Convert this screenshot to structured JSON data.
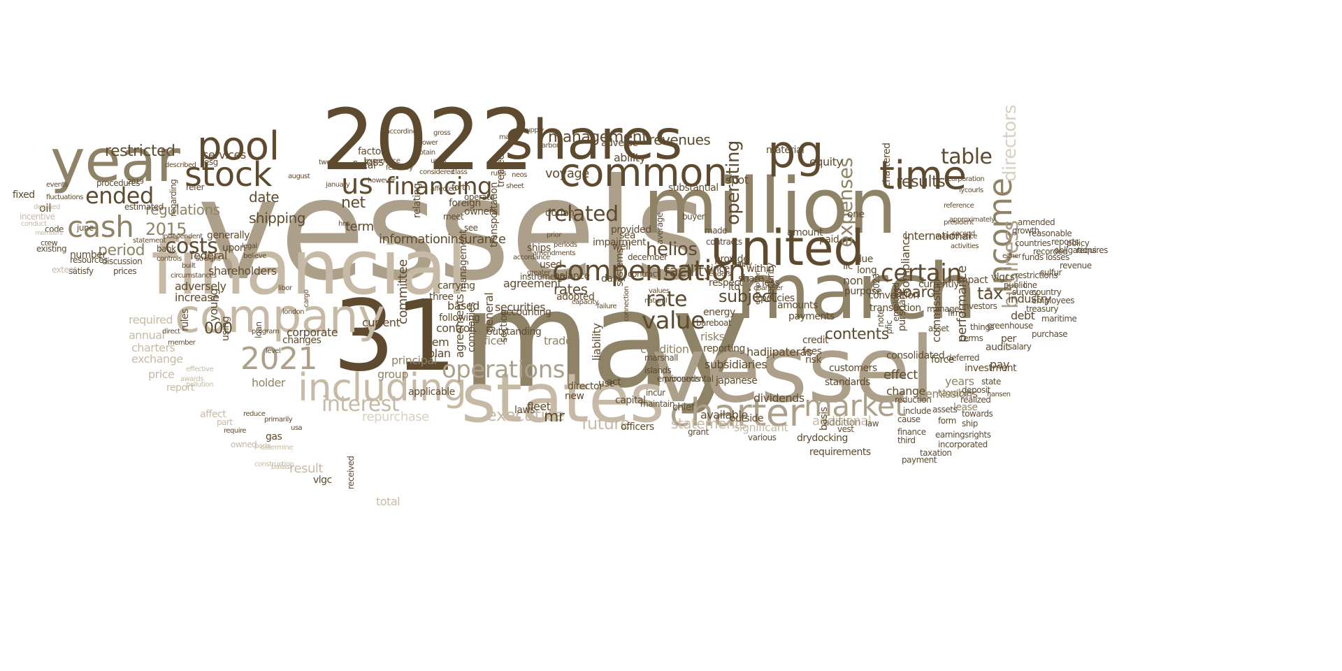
{
  "word_cloud": {
    "words": [
      "vessels",
      "2022",
      "may",
      "million",
      "march",
      "31",
      "vessel",
      "financial",
      "states",
      "shares",
      "year",
      "united",
      "company",
      "pool",
      "pg",
      "common",
      "stock",
      "income",
      "time",
      "including",
      "charter",
      "cash",
      "compensation",
      "market",
      "2021",
      "us",
      "financing",
      "costs",
      "interest",
      "ended",
      "operations",
      "related",
      "management",
      "revenues",
      "business",
      "rate",
      "rates",
      "value",
      "certain",
      "helios",
      "operating",
      "expenses",
      "table",
      "date",
      "restricted",
      "shipping",
      "period",
      "regulations",
      "2015",
      "000",
      "executive",
      "future",
      "statements",
      "additional",
      "repurchase",
      "significant",
      "information",
      "insurance",
      "committee",
      "facility",
      "subject",
      "results",
      "contents",
      "board",
      "tax",
      "directors",
      "shareholders",
      "term",
      "net",
      "risks",
      "condition",
      "officer",
      "trade",
      "principal",
      "group",
      "holder",
      "dividends",
      "available",
      "emissions",
      "years",
      "effect",
      "change",
      "performance",
      "commission",
      "compliance",
      "international",
      "industry",
      "debt",
      "audit",
      "japanese",
      "hadjipateras",
      "transaction",
      "consolidated",
      "convention",
      "currently",
      "impact",
      "investment",
      "pay",
      "lease",
      "taxable",
      "addition",
      "capital",
      "director",
      "act",
      "officers",
      "chief",
      "liability",
      "agreement",
      "adopted",
      "balance",
      "securities",
      "following",
      "based",
      "control",
      "item",
      "plan",
      "general",
      "section",
      "agreements",
      "companies",
      "applicable",
      "laws",
      "fleet",
      "new",
      "mr",
      "use",
      "subsidiaries",
      "ships",
      "used",
      "dorian",
      "services",
      "generally",
      "upon",
      "number",
      "code",
      "oil",
      "fixed",
      "june",
      "crew",
      "members",
      "charters",
      "exchange",
      "price",
      "report",
      "affect",
      "part",
      "owned",
      "gas",
      "result",
      "vlgc",
      "total",
      "received",
      "changes",
      "current",
      "adversely",
      "increase",
      "required",
      "annual",
      "federal",
      "factors",
      "fiscal",
      "loss",
      "voyage",
      "ability",
      "adverse",
      "substantial",
      "material",
      "equity",
      "chartered",
      "spot",
      "amount",
      "paid",
      "due",
      "long",
      "payments",
      "within",
      "fair",
      "share",
      "ltd",
      "days",
      "respect",
      "non",
      "purpose",
      "llc",
      "one",
      "per",
      "vlgcs",
      "pursuant",
      "basis",
      "drydocking",
      "requirements",
      "standards",
      "customers",
      "risk",
      "security",
      "fees",
      "credit",
      "amounts",
      "policies",
      "less",
      "provide",
      "since",
      "energy",
      "bareboat",
      "reporting",
      "force",
      "terms",
      "assets",
      "form",
      "deferred",
      "outstanding",
      "accounting",
      "corporate",
      "rules",
      "young",
      "using",
      "loan",
      "carrying",
      "three",
      "instruments",
      "management",
      "transportation",
      "relating",
      "treated",
      "forth",
      "operate",
      "foreign",
      "owners",
      "meet",
      "see",
      "provided",
      "impairment",
      "systems",
      "average",
      "buyer",
      "contracts",
      "made",
      "sea",
      "well",
      "december",
      "contract",
      "environmental",
      "marshall",
      "islands",
      "proceeds",
      "incur",
      "maintain",
      "outside",
      "grant",
      "various",
      "vest",
      "law",
      "finance",
      "third",
      "earnings",
      "incorporated",
      "taxation",
      "payment",
      "ship",
      "rights",
      "towards",
      "cause",
      "include",
      "reduction",
      "realized",
      "deposit",
      "state",
      "pfic",
      "note",
      "employed",
      "2023",
      "firm",
      "asset",
      "manage",
      "investors",
      "things",
      "public",
      "survey",
      "line",
      "salary",
      "purchase",
      "greenhouse",
      "maritime",
      "treasury",
      "employees",
      "restrictions",
      "sulfur",
      "revenue",
      "country",
      "countries",
      "funds",
      "recorded",
      "losses",
      "obligations",
      "reports",
      "policy",
      "requires",
      "growth",
      "reasonable",
      "amended",
      "esg",
      "refer",
      "regarding",
      "estimated",
      "procedures",
      "resources",
      "satisfy",
      "prices",
      "bank",
      "discussion",
      "existing",
      "extent",
      "deemed",
      "incentive",
      "conduct",
      "fluctuations",
      "2019",
      "described",
      "events",
      "statement",
      "independent",
      "controls",
      "circumstances",
      "built",
      "straight",
      "legal",
      "believe",
      "direct",
      "member",
      "awards",
      "effective",
      "pollution",
      "require",
      "reduce",
      "primarily",
      "usa",
      "ports",
      "ballast",
      "determine",
      "construction",
      "london",
      "program",
      "cargo",
      "level",
      "libor",
      "hns",
      "january",
      "august",
      "two",
      "however",
      "experience",
      "february",
      "units",
      "power",
      "obtain",
      "according",
      "class",
      "gross",
      "considered",
      "affected",
      "carbon",
      "supply",
      "make",
      "rules",
      "neos",
      "sheet",
      "periods",
      "amendments",
      "accordance",
      "greater",
      "prior",
      "capacity",
      "values",
      "natural",
      "failure",
      "connection",
      "exemption",
      "lenders",
      "safety",
      "charterer",
      "activities",
      "approximately",
      "reference",
      "president",
      "second",
      "maintenance",
      "corporation",
      "lycourls",
      "either",
      "hansen",
      "regulation",
      "trading",
      "issued",
      "expect",
      "entered",
      "authority",
      "september",
      "continue",
      "positions",
      "october"
    ]
  }
}
